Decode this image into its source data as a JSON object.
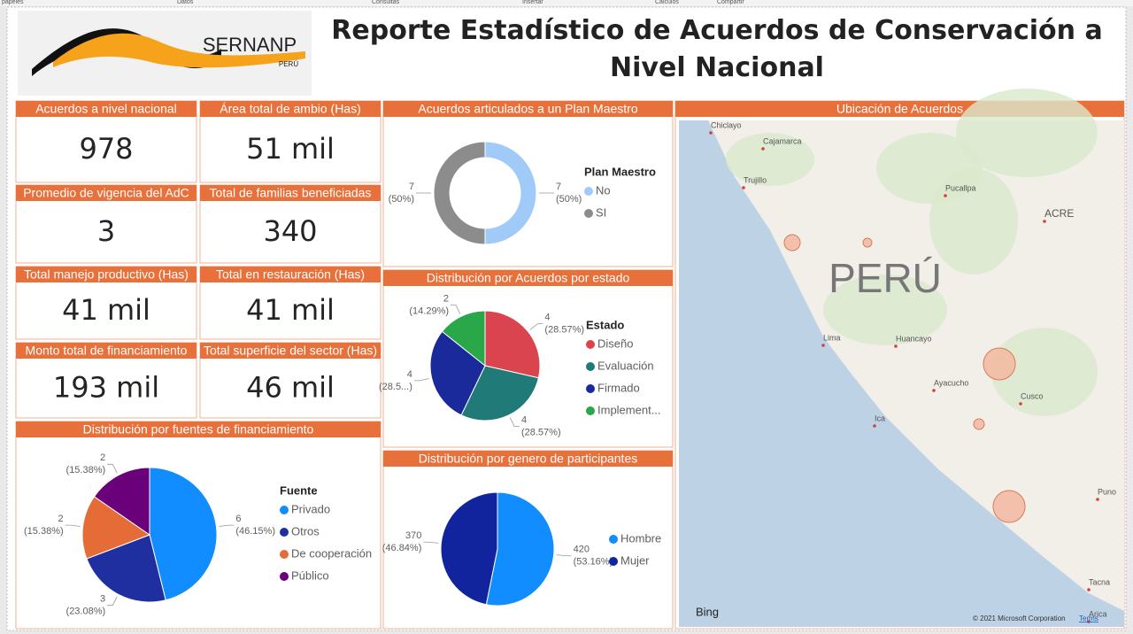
{
  "ribbon": [
    "papeles",
    "Datos",
    "Consultas",
    "Insertar",
    "Cálculos",
    "Compartir"
  ],
  "header": {
    "logo_text": "SERNANP",
    "logo_subtext": "PERÚ",
    "title": "Reporte Estadístico de Acuerdos de Conservación a Nivel Nacional"
  },
  "kpis": [
    {
      "label": "Acuerdos a nivel nacional",
      "value": "978"
    },
    {
      "label": "Área total de ambio (Has)",
      "value": "51 mil"
    },
    {
      "label": "Promedio de vigencia del AdC",
      "value": "3"
    },
    {
      "label": "Total de familias beneficiadas",
      "value": "340"
    },
    {
      "label": "Total manejo productivo (Has)",
      "value": "41 mil"
    },
    {
      "label": "Total en restauración (Has)",
      "value": "41 mil"
    },
    {
      "label": "Monto total de financiamiento",
      "value": "193 mil"
    },
    {
      "label": "Total superficie del sector (Has)",
      "value": "46 mil"
    }
  ],
  "chart_data": [
    {
      "type": "donut",
      "title": "Acuerdos articulados a un Plan Maestro",
      "legend_title": "Plan Maestro",
      "categories": [
        "No",
        "SI"
      ],
      "values": [
        7,
        7
      ],
      "percent_labels": [
        "(50%)",
        "(50%)"
      ],
      "colors": [
        "#a0cbf8",
        "#8c8c8c"
      ]
    },
    {
      "type": "pie",
      "title": "Distribución por Acuerdos por estado",
      "legend_title": "Estado",
      "categories": [
        "Diseño",
        "Evaluación",
        "Firmado",
        "Implement..."
      ],
      "values": [
        4,
        4,
        4,
        2
      ],
      "percent_labels": [
        "(28.57%)",
        "(28.57%)",
        "(28.5...)",
        "(14.29%)"
      ],
      "colors": [
        "#d9444f",
        "#1f7a78",
        "#1a2a9a",
        "#2aa748"
      ]
    },
    {
      "type": "pie",
      "title": "Distribución por fuentes de financiamiento",
      "legend_title": "Fuente",
      "categories": [
        "Privado",
        "Otros",
        "De cooperación",
        "Público"
      ],
      "values": [
        6,
        3,
        2,
        2
      ],
      "percent_labels": [
        "(46.15%)",
        "(23.08%)",
        "(15.38%)",
        "(15.38%)"
      ],
      "colors": [
        "#118dff",
        "#1f2fa0",
        "#e66c37",
        "#6b007b"
      ]
    },
    {
      "type": "pie",
      "title": "Distribución por genero de participantes",
      "categories": [
        "Hombre",
        "Mujer"
      ],
      "values": [
        420,
        370
      ],
      "percent_labels": [
        "(53.16%)",
        "(46.84%)"
      ],
      "colors": [
        "#118dff",
        "#12239e"
      ]
    }
  ],
  "map": {
    "title": "Ubicación de Acuerdos",
    "country": "PERÚ",
    "places": [
      "Chiclayo",
      "Cajamarca",
      "Trujillo",
      "Pucallpa",
      "ACRE",
      "Lima",
      "Huancayo",
      "Ayacucho",
      "Cusco",
      "Ica",
      "Puno",
      "Tacna",
      "Arica"
    ],
    "provider": "Bing",
    "copyright": "© 2021 Microsoft Corporation",
    "terms": "Terms"
  }
}
